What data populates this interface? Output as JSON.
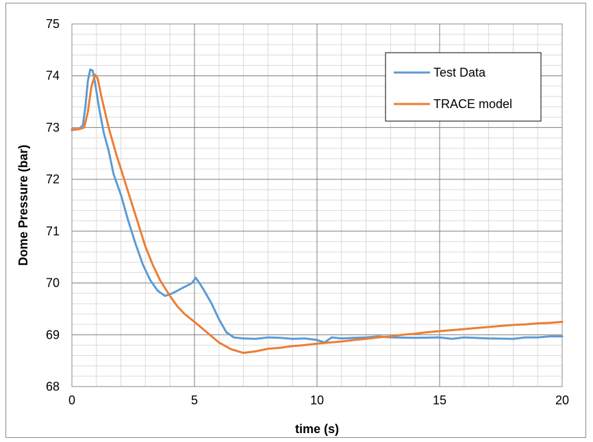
{
  "chart_data": {
    "type": "line",
    "title": "",
    "xlabel": "time (s)",
    "ylabel": "Dome Pressure (bar)",
    "xlim": [
      0,
      20
    ],
    "ylim": [
      68,
      75
    ],
    "x_ticks": [
      "0",
      "5",
      "10",
      "15",
      "20"
    ],
    "y_ticks": [
      "68",
      "69",
      "70",
      "71",
      "72",
      "73",
      "74",
      "75"
    ],
    "grid": "major and minor",
    "legend_position": "top-right",
    "series": [
      {
        "name": "Test Data",
        "color": "#5b9bd5",
        "x": [
          0,
          0.3,
          0.45,
          0.55,
          0.65,
          0.75,
          0.85,
          0.95,
          1.1,
          1.3,
          1.5,
          1.7,
          2.0,
          2.3,
          2.6,
          2.9,
          3.2,
          3.5,
          3.8,
          4.1,
          4.3,
          4.5,
          4.7,
          4.9,
          5.05,
          5.2,
          5.4,
          5.7,
          6.0,
          6.3,
          6.6,
          7.0,
          7.5,
          8.0,
          8.5,
          9.0,
          9.5,
          10.0,
          10.3,
          10.6,
          11.0,
          11.5,
          12.0,
          12.5,
          13.0,
          14.0,
          15.0,
          15.5,
          16.0,
          17.0,
          18.0,
          18.5,
          19.0,
          19.5,
          20.0
        ],
        "y": [
          72.95,
          72.97,
          73.05,
          73.4,
          73.9,
          74.12,
          74.1,
          73.85,
          73.4,
          72.9,
          72.55,
          72.1,
          71.7,
          71.2,
          70.75,
          70.35,
          70.05,
          69.85,
          69.75,
          69.8,
          69.85,
          69.9,
          69.95,
          70.0,
          70.1,
          70.0,
          69.85,
          69.6,
          69.3,
          69.05,
          68.95,
          68.93,
          68.92,
          68.95,
          68.94,
          68.92,
          68.93,
          68.9,
          68.85,
          68.95,
          68.93,
          68.94,
          68.95,
          68.97,
          68.95,
          68.94,
          68.95,
          68.92,
          68.95,
          68.93,
          68.92,
          68.95,
          68.95,
          68.97,
          68.97
        ]
      },
      {
        "name": "TRACE model",
        "color": "#ed7d31",
        "x": [
          0,
          0.3,
          0.5,
          0.65,
          0.8,
          0.95,
          1.05,
          1.2,
          1.5,
          1.8,
          2.1,
          2.4,
          2.7,
          3.0,
          3.3,
          3.6,
          4.0,
          4.3,
          4.6,
          5.0,
          5.5,
          6.0,
          6.5,
          7.0,
          7.5,
          8.0,
          8.5,
          9.0,
          9.5,
          10.0,
          10.5,
          11.0,
          11.5,
          12.0,
          12.5,
          13.0,
          13.5,
          14.0,
          14.5,
          15.0,
          15.5,
          16.0,
          16.5,
          17.0,
          17.5,
          18.0,
          18.5,
          19.0,
          19.5,
          20.0
        ],
        "y": [
          72.97,
          72.97,
          73.0,
          73.3,
          73.8,
          74.02,
          73.95,
          73.6,
          73.0,
          72.5,
          72.05,
          71.6,
          71.15,
          70.7,
          70.35,
          70.05,
          69.75,
          69.55,
          69.4,
          69.25,
          69.05,
          68.85,
          68.72,
          68.65,
          68.68,
          68.73,
          68.75,
          68.78,
          68.8,
          68.83,
          68.85,
          68.87,
          68.9,
          68.92,
          68.95,
          68.97,
          69.0,
          69.02,
          69.05,
          69.07,
          69.09,
          69.11,
          69.13,
          69.15,
          69.17,
          69.19,
          69.2,
          69.22,
          69.23,
          69.25
        ]
      }
    ]
  }
}
